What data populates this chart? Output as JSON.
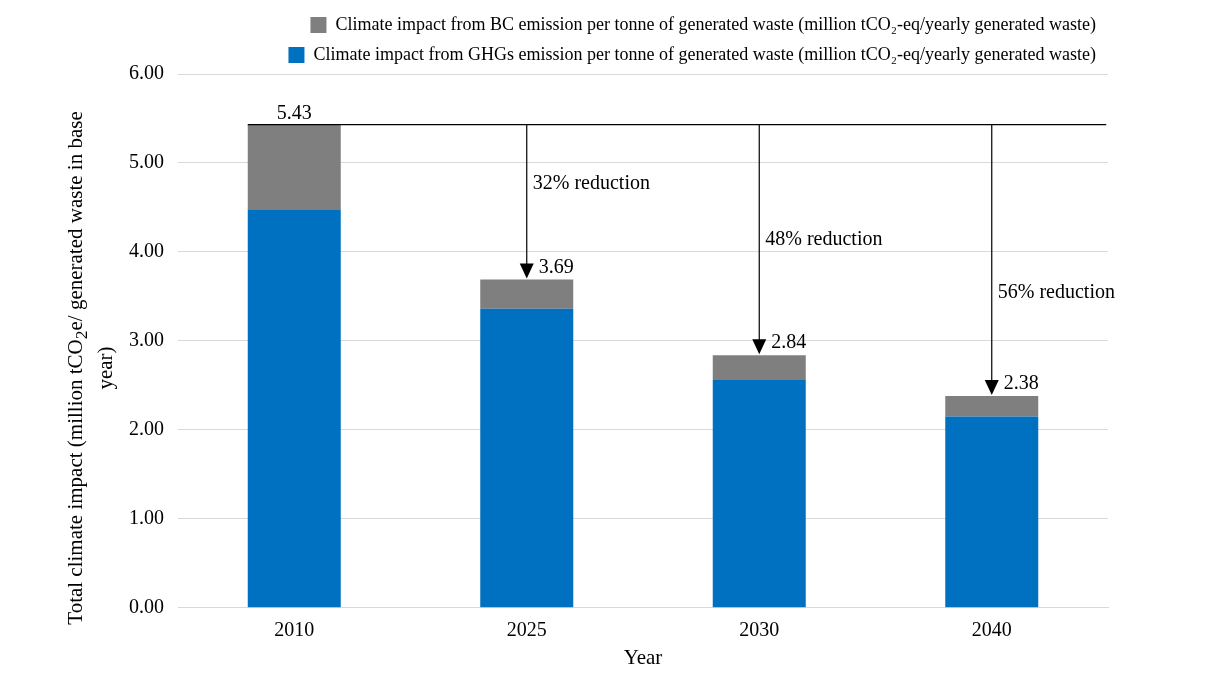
{
  "chart_data": {
    "type": "bar",
    "stacked": true,
    "categories": [
      "2010",
      "2025",
      "2030",
      "2040"
    ],
    "series": [
      {
        "name": "Climate impact from GHGs emission per tonne of generated waste (million tCO₂-eq/yearly generated waste)",
        "color": "#0070c0",
        "values": [
          4.47,
          3.36,
          2.56,
          2.15
        ]
      },
      {
        "name": "Climate impact from BC emission per tonne of generated waste (million tCO₂-eq/yearly generated waste)",
        "color": "#7f7f7f",
        "values": [
          0.96,
          0.33,
          0.28,
          0.23
        ]
      }
    ],
    "totals": [
      "5.43",
      "3.69",
      "2.84",
      "2.38"
    ],
    "xlabel": "Year",
    "ylabel": "Total climate impact (million tCO$_{2}$e/ generated waste in base year)",
    "ylim": [
      0,
      6
    ],
    "yticks": [
      {
        "value": 0,
        "label": "0.00"
      },
      {
        "value": 1,
        "label": "1.00"
      },
      {
        "value": 2,
        "label": "2.00"
      },
      {
        "value": 3,
        "label": "3.00"
      },
      {
        "value": 4,
        "label": "4.00"
      },
      {
        "value": 5,
        "label": "5.00"
      },
      {
        "value": 6,
        "label": "6.00"
      }
    ],
    "grid": "y",
    "legend": "top",
    "ref_lines": [
      {
        "axis": "y",
        "value": 5.43,
        "color": "#000000"
      }
    ],
    "annotations": [
      "32% reduction",
      "48% reduction",
      "56% reduction"
    ]
  }
}
